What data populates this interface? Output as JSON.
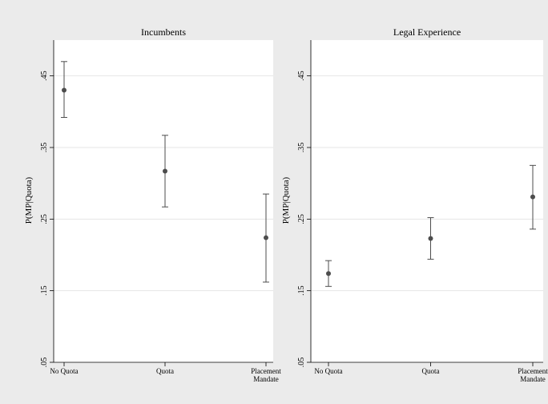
{
  "figure": {
    "background": "#ebebeb",
    "plot_background": "#ffffff",
    "marker_color": "#4d4d4d",
    "grid_color": "#e6e6e6"
  },
  "chart_data": [
    {
      "type": "scatter",
      "title": "Incumbents",
      "ylabel": "P(MP|Quota)",
      "categories": [
        "No Quota",
        "Quota",
        "Placement Mandate"
      ],
      "category_lines": [
        [
          "No Quota"
        ],
        [
          "Quota"
        ],
        [
          "Placement",
          "Mandate"
        ]
      ],
      "yticks": [
        0.05,
        0.15,
        0.25,
        0.35,
        0.45
      ],
      "ytick_labels": [
        ".05",
        ".15",
        ".25",
        ".35",
        ".45"
      ],
      "ylim": [
        0.05,
        0.5
      ],
      "grid": true,
      "points": [
        {
          "category": "No Quota",
          "y": 0.43,
          "lower": 0.392,
          "upper": 0.47
        },
        {
          "category": "Quota",
          "y": 0.317,
          "lower": 0.267,
          "upper": 0.367
        },
        {
          "category": "Placement Mandate",
          "y": 0.224,
          "lower": 0.162,
          "upper": 0.285
        }
      ]
    },
    {
      "type": "scatter",
      "title": "Legal Experience",
      "ylabel": "P(MP|Quota)",
      "categories": [
        "No Quota",
        "Quota",
        "Placement Mandate"
      ],
      "category_lines": [
        [
          "No Quota"
        ],
        [
          "Quota"
        ],
        [
          "Placement",
          "Mandate"
        ]
      ],
      "yticks": [
        0.05,
        0.15,
        0.25,
        0.35,
        0.45
      ],
      "ytick_labels": [
        ".05",
        ".15",
        ".25",
        ".35",
        ".45"
      ],
      "ylim": [
        0.05,
        0.5
      ],
      "grid": true,
      "points": [
        {
          "category": "No Quota",
          "y": 0.174,
          "lower": 0.156,
          "upper": 0.192
        },
        {
          "category": "Quota",
          "y": 0.223,
          "lower": 0.194,
          "upper": 0.252
        },
        {
          "category": "Placement Mandate",
          "y": 0.281,
          "lower": 0.236,
          "upper": 0.325
        }
      ]
    }
  ]
}
